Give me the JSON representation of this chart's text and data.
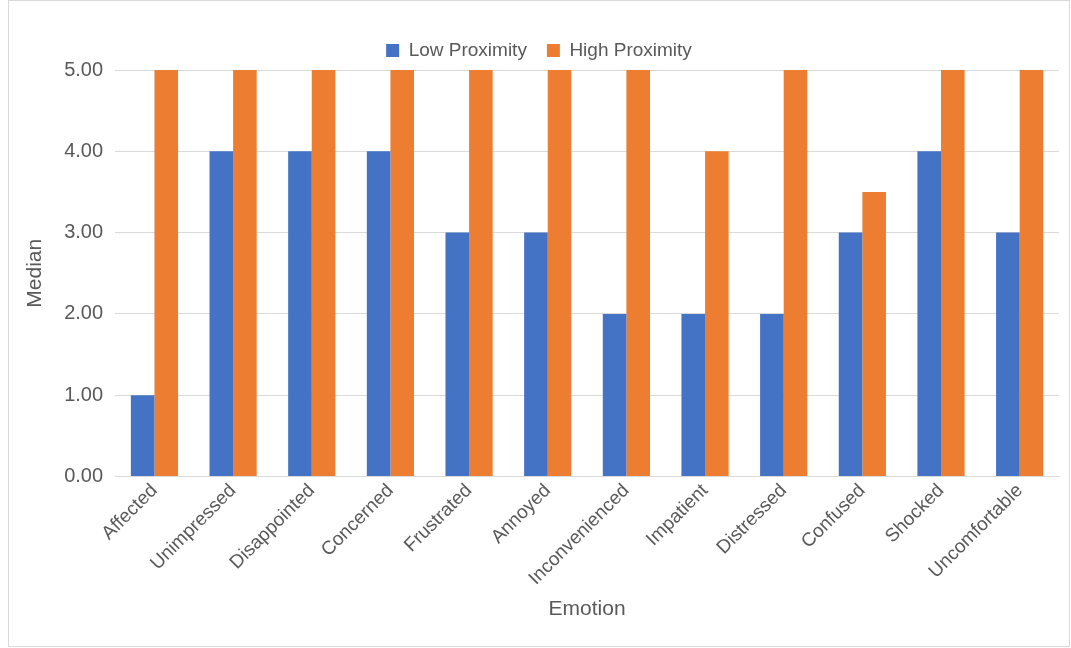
{
  "chart_data": {
    "type": "bar",
    "xlabel": "Emotion",
    "ylabel": "Median",
    "categories": [
      "Affected",
      "Unimpressed",
      "Disappointed",
      "Concerned",
      "Frustrated",
      "Annoyed",
      "Inconvenienced",
      "Impatient",
      "Distressed",
      "Confused",
      "Shocked",
      "Uncomfortable"
    ],
    "series": [
      {
        "name": "Low Proximity",
        "color": "#4472c4",
        "values": [
          1,
          4,
          4,
          4,
          3,
          3,
          2,
          2,
          2,
          3,
          4,
          3
        ]
      },
      {
        "name": "High Proximity",
        "color": "#ed7d31",
        "values": [
          5,
          5,
          5,
          5,
          5,
          5,
          5,
          4,
          5,
          3.5,
          5,
          5
        ]
      }
    ],
    "ylim": [
      0,
      5
    ],
    "yticks": [
      {
        "value": 0,
        "label": "0.00"
      },
      {
        "value": 1,
        "label": "1.00"
      },
      {
        "value": 2,
        "label": "2.00"
      },
      {
        "value": 3,
        "label": "3.00"
      },
      {
        "value": 4,
        "label": "4.00"
      },
      {
        "value": 5,
        "label": "5.00"
      }
    ],
    "grid": "y",
    "legend": "top"
  }
}
